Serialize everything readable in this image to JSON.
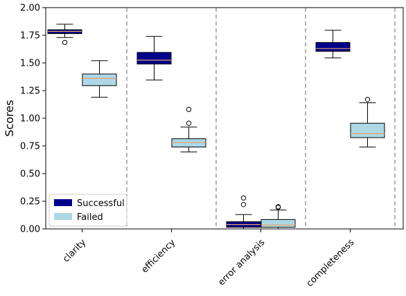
{
  "chart_data": {
    "type": "box",
    "title": "",
    "xlabel": "",
    "ylabel": "Scores",
    "ylim": [
      0,
      2.0
    ],
    "yticks": [
      "0.00",
      "0.25",
      "0.50",
      "0.75",
      "1.00",
      "1.25",
      "1.50",
      "1.75",
      "2.00"
    ],
    "categories": [
      "clarity",
      "efficiency",
      "error analysis",
      "completeness"
    ],
    "grid": false,
    "legend_position": "lower-left",
    "median_color": "#e8a26a",
    "series": [
      {
        "name": "Successful",
        "color": "#00008b",
        "boxes": [
          {
            "whisker_low": 1.73,
            "q1": 1.765,
            "median": 1.785,
            "q3": 1.8,
            "whisker_high": 1.85,
            "outliers": [
              1.685
            ]
          },
          {
            "whisker_low": 1.345,
            "q1": 1.49,
            "median": 1.525,
            "q3": 1.595,
            "whisker_high": 1.74,
            "outliers": []
          },
          {
            "whisker_low": 0.0,
            "q1": 0.015,
            "median": 0.04,
            "q3": 0.065,
            "whisker_high": 0.13,
            "outliers": [
              0.22,
              0.28
            ]
          },
          {
            "whisker_low": 1.545,
            "q1": 1.605,
            "median": 1.63,
            "q3": 1.685,
            "whisker_high": 1.795,
            "outliers": []
          }
        ]
      },
      {
        "name": "Failed",
        "color": "#add8e6",
        "boxes": [
          {
            "whisker_low": 1.19,
            "q1": 1.295,
            "median": 1.36,
            "q3": 1.4,
            "whisker_high": 1.52,
            "outliers": []
          },
          {
            "whisker_low": 0.695,
            "q1": 0.74,
            "median": 0.78,
            "q3": 0.815,
            "whisker_high": 0.92,
            "outliers": [
              0.955,
              1.08
            ]
          },
          {
            "whisker_low": 0.0,
            "q1": 0.015,
            "median": 0.035,
            "q3": 0.085,
            "whisker_high": 0.17,
            "outliers": [
              0.195,
              0.2
            ]
          },
          {
            "whisker_low": 0.74,
            "q1": 0.825,
            "median": 0.86,
            "q3": 0.955,
            "whisker_high": 1.14,
            "outliers": [
              1.17
            ]
          }
        ]
      }
    ]
  }
}
